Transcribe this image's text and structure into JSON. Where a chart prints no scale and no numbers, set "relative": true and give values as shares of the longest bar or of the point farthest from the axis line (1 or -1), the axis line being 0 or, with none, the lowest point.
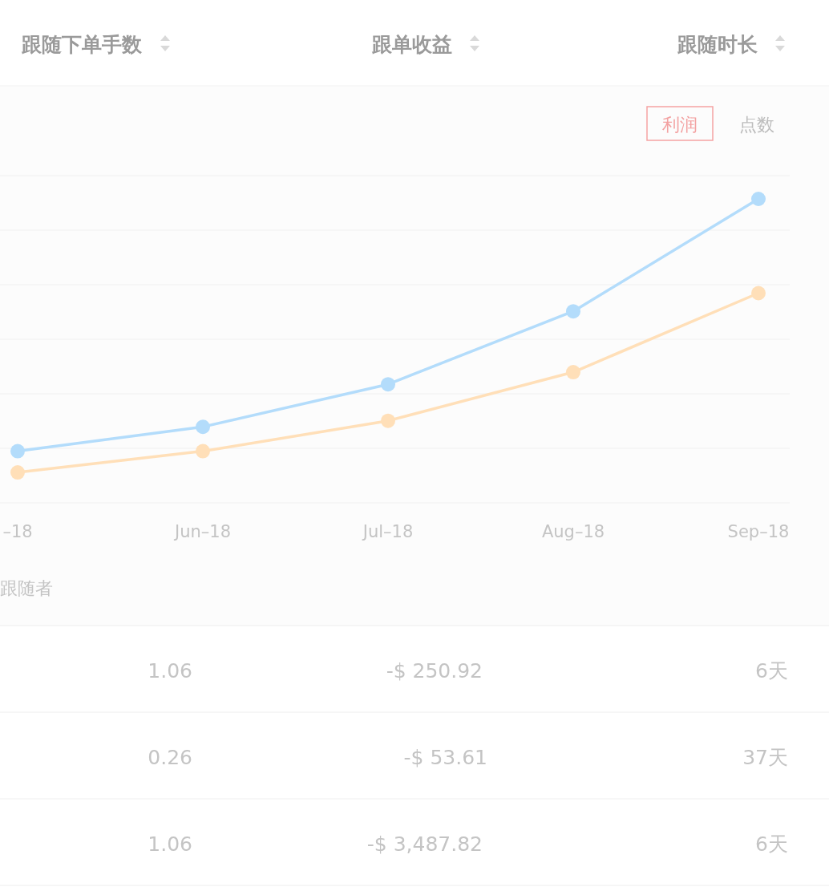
{
  "chart_data": [
    {
      "type": "other",
      "annotations": [
        "跟随下单手数",
        "跟单收益",
        "跟随时长"
      ]
    },
    {
      "type": "line",
      "relative": true,
      "grid": "y",
      "marker": "circle",
      "line_style": "solid",
      "categories": [
        "–18",
        "Jun–18",
        "Jul–18",
        "Aug–18",
        "Sep–18"
      ],
      "series": [
        {
          "color": "#b3dcfb",
          "values": [
            0.17,
            0.25,
            0.39,
            0.63,
            1
          ]
        },
        {
          "color": "#ffdfb8",
          "values": [
            0.1,
            0.17,
            0.27,
            0.43,
            0.69
          ]
        }
      ],
      "annotations": [
        "利润",
        "点数",
        "跟随者"
      ]
    },
    {
      "type": "other",
      "annotations": [
        "1.06",
        "-$ 250.92",
        "6天",
        "0.26",
        "-$ 53.61",
        "37天",
        "1.06",
        "-$ 3,487.82",
        "6天"
      ]
    }
  ]
}
